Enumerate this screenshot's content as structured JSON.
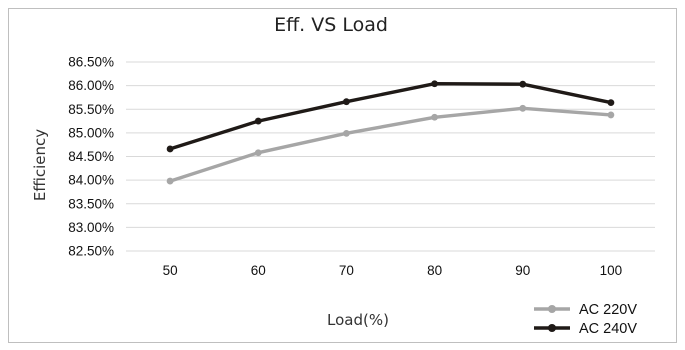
{
  "chart_data": {
    "type": "line",
    "title": "Eff. VS Load",
    "xlabel": "Load(%)",
    "ylabel": "Efficiency",
    "categories": [
      "50",
      "60",
      "70",
      "80",
      "90",
      "100"
    ],
    "y_ticks": [
      "82.50%",
      "83.00%",
      "83.50%",
      "84.00%",
      "84.50%",
      "85.00%",
      "85.50%",
      "86.00%",
      "86.50%"
    ],
    "ylim": [
      82.5,
      86.5
    ],
    "grid": true,
    "legend_position": "bottom-right",
    "series": [
      {
        "name": "AC 220V",
        "color": "#a6a6a6",
        "values": [
          83.98,
          84.58,
          84.99,
          85.33,
          85.52,
          85.38
        ]
      },
      {
        "name": "AC 240V",
        "color": "#1f1a17",
        "values": [
          84.66,
          85.25,
          85.66,
          86.04,
          86.03,
          85.64
        ]
      }
    ]
  }
}
